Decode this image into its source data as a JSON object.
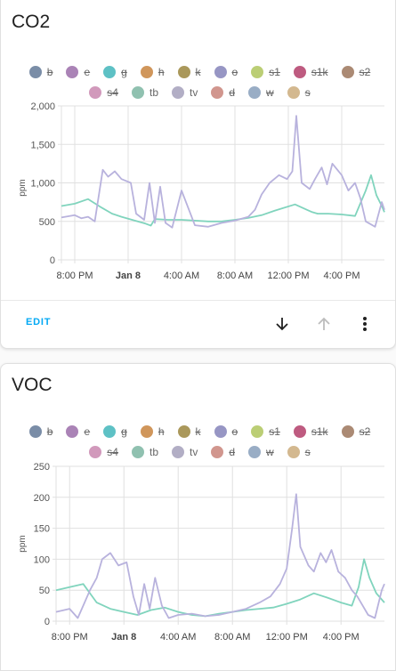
{
  "cards": [
    {
      "title": "CO2",
      "y_axis_label": "ppm",
      "y_ticks": [
        "2,000",
        "1,500",
        "1,000",
        "500",
        "0"
      ],
      "x_ticks": [
        "8:00 PM",
        "Jan 8",
        "4:00 AM",
        "8:00 AM",
        "12:00 PM",
        "4:00 PM"
      ],
      "actions": {
        "edit_label": "EDIT"
      }
    },
    {
      "title": "VOC",
      "y_axis_label": "ppm",
      "y_ticks": [
        "250",
        "200",
        "150",
        "100",
        "50",
        "0"
      ],
      "x_ticks": [
        "8:00 PM",
        "Jan 8",
        "4:00 AM",
        "8:00 AM",
        "12:00 PM",
        "4:00 PM"
      ]
    }
  ],
  "legend": [
    {
      "label": "b",
      "color": "#8fa6c4",
      "hidden": true
    },
    {
      "label": "e",
      "color": "#c89ad6",
      "hidden": true
    },
    {
      "label": "g",
      "color": "#6fe3e8",
      "hidden": true
    },
    {
      "label": "h",
      "color": "#f5b06b",
      "hidden": true
    },
    {
      "label": "k",
      "color": "#c8b36b",
      "hidden": true
    },
    {
      "label": "o",
      "color": "#b2b0e6",
      "hidden": true
    },
    {
      "label": "s1",
      "color": "#dcf28a",
      "hidden": true
    },
    {
      "label": "s1k",
      "color": "#e06b96",
      "hidden": true
    },
    {
      "label": "s2",
      "color": "#c9a288",
      "hidden": true
    },
    {
      "label": "s4",
      "color": "#f6b4dc",
      "hidden": true
    },
    {
      "label": "tb",
      "color": "#a9e3cf",
      "hidden": false
    },
    {
      "label": "tv",
      "color": "#d1cde8",
      "hidden": false
    },
    {
      "label": "d",
      "color": "#f6b1a7",
      "hidden": true
    },
    {
      "label": "w",
      "color": "#b4cbe8",
      "hidden": true
    },
    {
      "label": "s",
      "color": "#f8d8a8",
      "hidden": true
    }
  ],
  "chart_data": [
    {
      "type": "line",
      "title": "CO2",
      "ylabel": "ppm",
      "ylim": [
        0,
        2000
      ],
      "x_unit": "hours since Jan 7 7:00 PM",
      "xlim": [
        0,
        24.2
      ],
      "series": [
        {
          "name": "tb",
          "color": "#80d4bd",
          "x": [
            0,
            1,
            2,
            3,
            3.8,
            4.5,
            5.5,
            6.3,
            6.7,
            7,
            8,
            9,
            10,
            11,
            12,
            13,
            14,
            15,
            16,
            17.5,
            18.4,
            18.8,
            19.2,
            20,
            21,
            22,
            22.8,
            23.2,
            23.6,
            24,
            24.2
          ],
          "values": [
            700,
            730,
            790,
            680,
            600,
            560,
            510,
            470,
            445,
            530,
            520,
            520,
            510,
            500,
            500,
            520,
            545,
            580,
            640,
            720,
            650,
            620,
            600,
            600,
            590,
            570,
            900,
            1100,
            840,
            700,
            620
          ]
        },
        {
          "name": "tv",
          "color": "#b8b2dd",
          "x": [
            0,
            1,
            1.5,
            2,
            2.5,
            3.1,
            3.5,
            4,
            4.5,
            5.2,
            5.6,
            6.2,
            6.6,
            7,
            7.4,
            7.8,
            8.3,
            9,
            10,
            11,
            12,
            13,
            14,
            14.5,
            15,
            15.6,
            16.3,
            16.9,
            17.3,
            17.6,
            18,
            18.6,
            19,
            19.5,
            19.9,
            20.3,
            21,
            21.5,
            22,
            22.4,
            22.8,
            23.5,
            24,
            24.2
          ],
          "values": [
            550,
            580,
            540,
            560,
            500,
            1170,
            1080,
            1150,
            1050,
            1000,
            600,
            520,
            1000,
            480,
            950,
            480,
            420,
            900,
            450,
            430,
            480,
            510,
            560,
            650,
            850,
            1000,
            1100,
            1050,
            1150,
            1870,
            1000,
            920,
            1050,
            1200,
            980,
            1250,
            1100,
            900,
            1000,
            800,
            500,
            430,
            750,
            650
          ]
        }
      ]
    },
    {
      "type": "line",
      "title": "VOC",
      "ylabel": "ppm",
      "ylim": [
        0,
        250
      ],
      "x_unit": "hours since Jan 7 7:00 PM",
      "xlim": [
        0,
        24.2
      ],
      "series": [
        {
          "name": "tb",
          "color": "#80d4bd",
          "x": [
            0,
            1,
            2,
            3,
            4,
            5,
            6,
            7,
            8,
            9,
            10,
            11,
            12,
            13,
            14,
            15,
            16,
            17,
            18,
            19,
            20,
            21,
            21.8,
            22.3,
            22.7,
            23.1,
            23.6,
            24.2
          ],
          "values": [
            50,
            55,
            60,
            30,
            20,
            15,
            10,
            18,
            22,
            15,
            10,
            8,
            12,
            15,
            18,
            20,
            22,
            28,
            35,
            45,
            38,
            30,
            25,
            55,
            100,
            70,
            45,
            30
          ]
        },
        {
          "name": "tv",
          "color": "#b8b2dd",
          "x": [
            0,
            1,
            1.6,
            2,
            2.5,
            3,
            3.4,
            4,
            4.6,
            5.2,
            5.7,
            6.1,
            6.5,
            6.9,
            7.3,
            7.8,
            8.3,
            9,
            10,
            11,
            12,
            13,
            14,
            15,
            15.8,
            16.5,
            17,
            17.4,
            17.7,
            18,
            18.6,
            19,
            19.5,
            19.9,
            20.3,
            20.8,
            21.3,
            21.8,
            22.2,
            22.6,
            23,
            23.5,
            24,
            24.2
          ],
          "values": [
            15,
            20,
            5,
            25,
            50,
            70,
            100,
            110,
            90,
            95,
            40,
            10,
            60,
            20,
            70,
            25,
            5,
            10,
            12,
            8,
            10,
            15,
            20,
            30,
            40,
            60,
            85,
            150,
            205,
            120,
            90,
            80,
            110,
            95,
            115,
            80,
            70,
            50,
            40,
            25,
            10,
            5,
            50,
            60
          ]
        }
      ]
    }
  ]
}
